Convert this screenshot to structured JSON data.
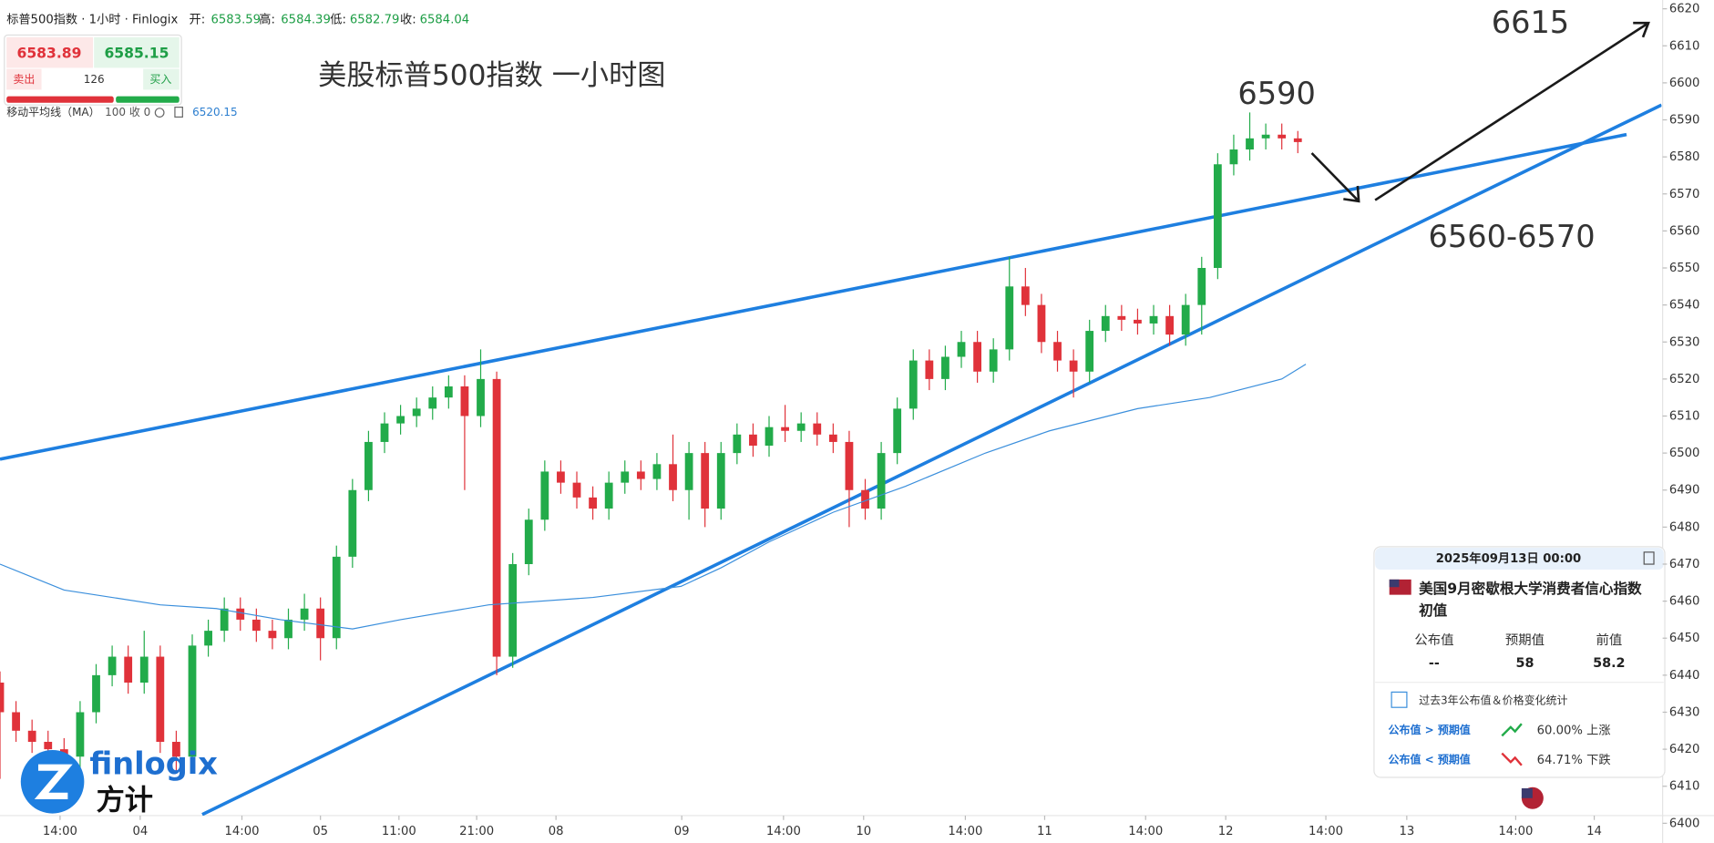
{
  "header": {
    "symbol": "标普500指数 · 1小时 · Finlogix",
    "open_label": "开:",
    "open": 6583.59,
    "high_label": "高:",
    "high": 6584.39,
    "low_label": "低:",
    "low": 6582.79,
    "close_label": "收:",
    "close": 6584.04
  },
  "trade_panel": {
    "sell_price": 6583.89,
    "sell_label": "卖出",
    "spread": 126,
    "buy_price": 6585.15,
    "buy_label": "买入"
  },
  "chart_data": {
    "type": "candlestick",
    "title": "美股标普500指数 一小时图",
    "annotations": [
      "6615",
      "6590",
      "6560-6570"
    ],
    "indicator": {
      "name": "移动平均线（MA）",
      "params": "100 收 0",
      "value": 6520.15
    },
    "up_color": "#22ab4a",
    "down_color": "#e0323a",
    "ma_color": "#3b8fdc",
    "xlim": [
      0,
      207.4
    ],
    "ylim": [
      6400,
      6620
    ],
    "xticks": [
      {
        "value": 7.5,
        "label": "14:00"
      },
      {
        "value": 17.5,
        "label": "04"
      },
      {
        "value": 30.2,
        "label": "14:00"
      },
      {
        "value": 40,
        "label": "05"
      },
      {
        "value": 49.8,
        "label": "11:00"
      },
      {
        "value": 59.5,
        "label": "21:00"
      },
      {
        "value": 69.4,
        "label": "08"
      },
      {
        "value": 85.1,
        "label": "09"
      },
      {
        "value": 97.8,
        "label": "14:00"
      },
      {
        "value": 107.8,
        "label": "10"
      },
      {
        "value": 120.5,
        "label": "14:00"
      },
      {
        "value": 130.4,
        "label": "11"
      },
      {
        "value": 143,
        "label": "14:00"
      },
      {
        "value": 153,
        "label": "12"
      },
      {
        "value": 165.5,
        "label": "14:00"
      },
      {
        "value": 175.6,
        "label": "13"
      },
      {
        "value": 189.2,
        "label": "14:00"
      },
      {
        "value": 199,
        "label": "14"
      }
    ],
    "yticks": [
      6400,
      6410,
      6420,
      6430,
      6440,
      6450,
      6460,
      6470,
      6480,
      6490,
      6500,
      6510,
      6520,
      6530,
      6540,
      6550,
      6560,
      6570,
      6580,
      6590,
      6600,
      6610,
      6620
    ],
    "x": [
      0,
      2,
      4,
      6,
      8,
      10,
      12,
      14,
      16,
      18,
      20,
      22,
      24,
      26,
      28,
      30,
      32,
      34,
      36,
      38,
      40,
      42,
      44,
      46,
      48,
      50,
      52,
      54,
      56,
      58,
      60,
      62,
      64,
      66,
      68,
      70,
      72,
      74,
      76,
      78,
      80,
      82,
      84,
      86,
      88,
      90,
      92,
      94,
      96,
      98,
      100,
      102,
      104,
      106,
      108,
      110,
      112,
      114,
      116,
      118,
      120,
      122,
      124,
      126,
      128,
      130,
      132,
      134,
      136,
      138,
      140,
      142,
      144,
      146,
      148,
      150,
      152,
      154,
      156,
      158,
      160,
      162
    ],
    "open": [
      6438,
      6430,
      6425,
      6422,
      6420,
      6418,
      6430,
      6440,
      6445,
      6438,
      6445,
      6422,
      6418,
      6448,
      6452,
      6458,
      6455,
      6452,
      6450,
      6455,
      6458,
      6450,
      6472,
      6490,
      6503,
      6508,
      6510,
      6512,
      6515,
      6518,
      6510,
      6520,
      6445,
      6470,
      6482,
      6495,
      6492,
      6488,
      6485,
      6492,
      6495,
      6493,
      6497,
      6490,
      6500,
      6485,
      6500,
      6505,
      6502,
      6507,
      6506,
      6508,
      6505,
      6503,
      6490,
      6485,
      6500,
      6512,
      6525,
      6520,
      6526,
      6530,
      6522,
      6528,
      6545,
      6540,
      6530,
      6525,
      6522,
      6533,
      6537,
      6536,
      6535,
      6537,
      6532,
      6540,
      6550,
      6578,
      6582,
      6585,
      6586,
      6585
    ],
    "high": [
      6441,
      6433,
      6428,
      6425,
      6423,
      6433,
      6443,
      6448,
      6448,
      6452,
      6448,
      6425,
      6451,
      6455,
      6461,
      6461,
      6458,
      6455,
      6458,
      6462,
      6461,
      6475,
      6493,
      6506,
      6511,
      6513,
      6515,
      6518,
      6521,
      6521,
      6528,
      6522,
      6473,
      6485,
      6498,
      6498,
      6495,
      6491,
      6495,
      6498,
      6498,
      6500,
      6505,
      6503,
      6503,
      6503,
      6508,
      6508,
      6510,
      6513,
      6511,
      6511,
      6508,
      6506,
      6493,
      6503,
      6515,
      6528,
      6528,
      6529,
      6533,
      6533,
      6531,
      6553,
      6550,
      6543,
      6533,
      6528,
      6536,
      6540,
      6540,
      6539,
      6540,
      6540,
      6543,
      6553,
      6581,
      6586,
      6592,
      6589,
      6589,
      6587
    ],
    "low": [
      6412,
      6422,
      6419,
      6417,
      6414,
      6415,
      6427,
      6437,
      6435,
      6435,
      6419,
      6414,
      6415,
      6445,
      6449,
      6452,
      6449,
      6447,
      6447,
      6452,
      6444,
      6447,
      6469,
      6487,
      6500,
      6505,
      6507,
      6509,
      6512,
      6490,
      6507,
      6440,
      6442,
      6467,
      6479,
      6489,
      6485,
      6482,
      6482,
      6489,
      6490,
      6490,
      6487,
      6482,
      6480,
      6482,
      6497,
      6499,
      6499,
      6503,
      6503,
      6502,
      6500,
      6480,
      6482,
      6482,
      6497,
      6509,
      6517,
      6517,
      6523,
      6519,
      6519,
      6525,
      6537,
      6527,
      6522,
      6515,
      6519,
      6530,
      6533,
      6532,
      6532,
      6529,
      6529,
      6532,
      6547,
      6575,
      6579,
      6582,
      6582,
      6581
    ],
    "close": [
      6430,
      6425,
      6422,
      6420,
      6418,
      6430,
      6440,
      6445,
      6438,
      6445,
      6422,
      6418,
      6448,
      6452,
      6458,
      6455,
      6452,
      6450,
      6455,
      6458,
      6450,
      6472,
      6490,
      6503,
      6508,
      6510,
      6512,
      6515,
      6518,
      6510,
      6520,
      6445,
      6470,
      6482,
      6495,
      6492,
      6488,
      6485,
      6492,
      6495,
      6493,
      6497,
      6490,
      6500,
      6485,
      6500,
      6505,
      6502,
      6507,
      6506,
      6508,
      6505,
      6503,
      6490,
      6485,
      6500,
      6512,
      6525,
      6520,
      6526,
      6530,
      6522,
      6528,
      6545,
      6540,
      6530,
      6525,
      6522,
      6533,
      6537,
      6536,
      6535,
      6537,
      6532,
      6540,
      6550,
      6578,
      6582,
      6585,
      6586,
      6585,
      6584
    ],
    "ma_x": [
      0,
      8,
      20,
      27,
      35,
      44,
      50,
      61,
      74,
      85,
      90,
      96,
      104,
      113,
      123,
      131,
      142,
      151,
      160,
      163
    ],
    "ma_values": [
      6470,
      6463,
      6459,
      6458,
      6455,
      6452.5,
      6455,
      6459,
      6461,
      6464,
      6469,
      6476,
      6484,
      6491,
      6500,
      6506,
      6512,
      6515,
      6520,
      6524
    ]
  },
  "event_card": {
    "datetime": "2025年09月13日 00:00",
    "title_line1": "美国9月密歇根大学消费者信心指数",
    "title_line2": "初值",
    "actual_label": "公布值",
    "actual": "--",
    "forecast_label": "预期值",
    "forecast": 58,
    "previous_label": "前值",
    "previous": 58.2,
    "stats_link": "过去3年公布值＆价格变化统计",
    "above_label": "公布值 > 预期值",
    "above_result": "60.00% 上涨",
    "below_label": "公布值 < 预期值",
    "below_result": "64.71% 下跌"
  },
  "logo": {
    "brand": "finlogix",
    "brand_cn": "方计"
  }
}
